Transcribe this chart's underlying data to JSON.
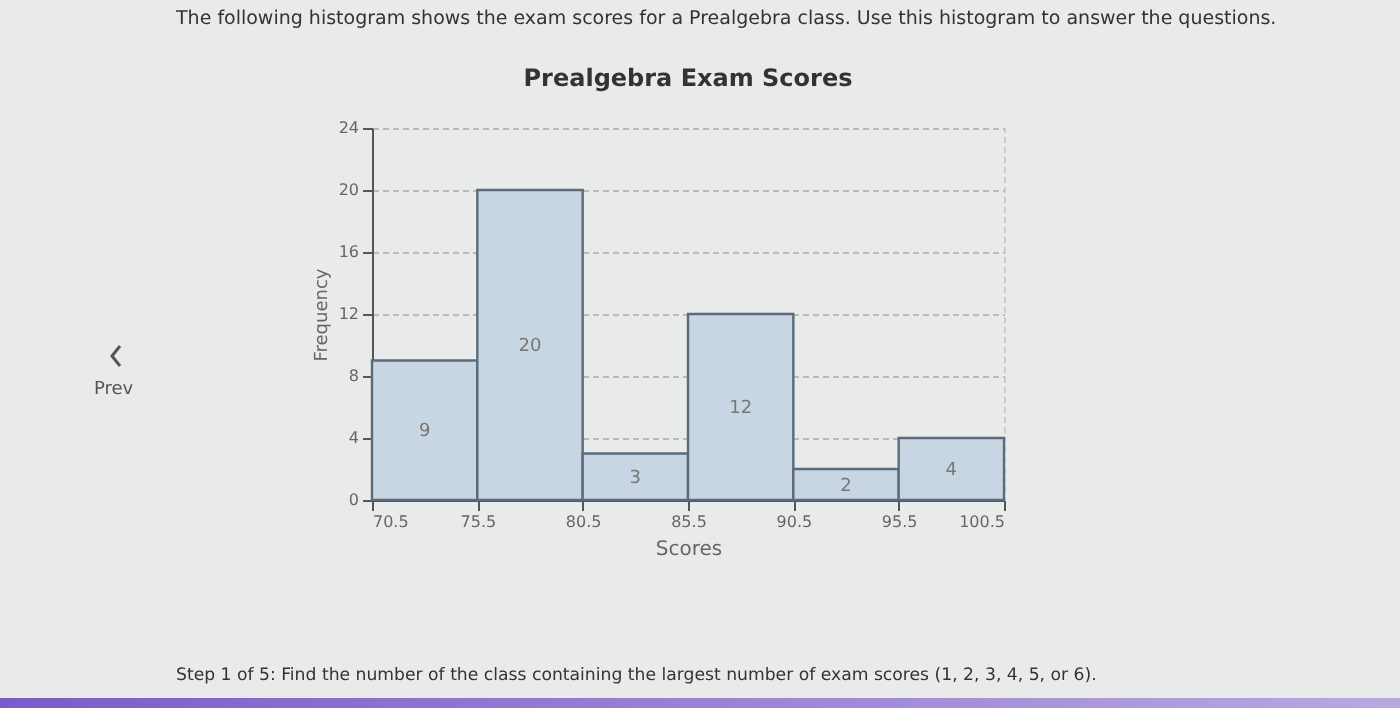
{
  "chart_data": {
    "type": "histogram",
    "title": "Prealgebra Exam Scores",
    "xlabel": "Scores",
    "ylabel": "Frequency",
    "bins": [
      70.5,
      75.5,
      80.5,
      85.5,
      90.5,
      95.5,
      100.5
    ],
    "values": [
      9,
      20,
      3,
      12,
      2,
      4
    ],
    "color": "#c8d6e3",
    "xlim": [
      70.5,
      100.5
    ],
    "xticks": [
      70.5,
      75.5,
      80.5,
      85.5,
      90.5,
      95.5,
      100.5
    ],
    "ylim": [
      0,
      24
    ],
    "yticks": [
      0,
      4,
      8,
      12,
      16,
      20,
      24
    ],
    "grid": "y",
    "data_labels": true,
    "annotations": [
      "The following histogram shows the exam scores for a Prealgebra class. Use this histogram to answer the questions.",
      "Prev",
      "Step 1 of 5: Find the number of the class containing the largest number of exam scores (1, 2, 3, 4, 5, or 6)."
    ]
  }
}
